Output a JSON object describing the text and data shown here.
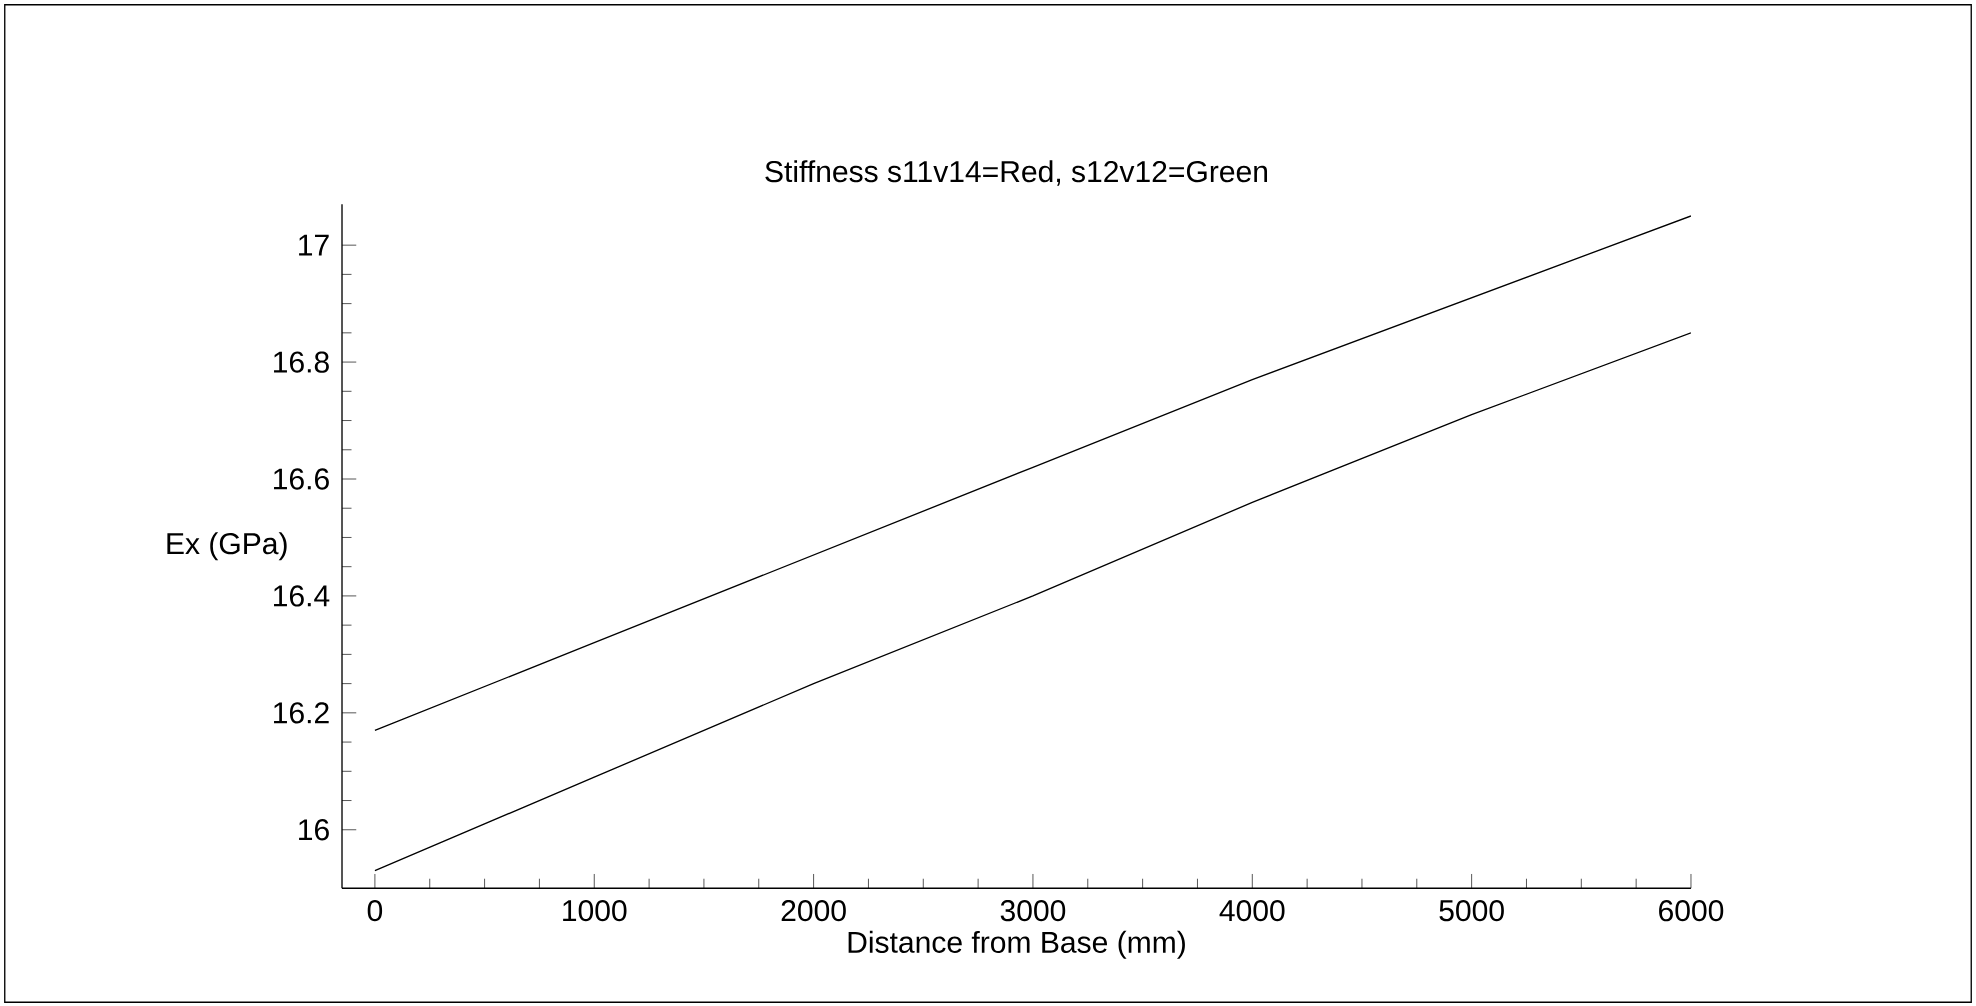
{
  "chart_data": {
    "type": "line",
    "title": "Stiffness  s11v14=Red,         s12v12=Green",
    "xlabel": "Distance from Base  (mm)",
    "ylabel": "Ex (GPa)",
    "x": [
      0,
      1000,
      2000,
      3000,
      4000,
      5000,
      6000
    ],
    "series": [
      {
        "color": "#000000",
        "values": [
          16.17,
          16.32,
          16.47,
          16.62,
          16.77,
          16.91,
          17.05
        ]
      },
      {
        "color": "#000000",
        "values": [
          15.93,
          16.09,
          16.25,
          16.4,
          16.56,
          16.71,
          16.85
        ]
      }
    ],
    "xlim": [
      -150,
      6000
    ],
    "ylim": [
      15.9,
      17.07
    ],
    "xticks": [
      0,
      1000,
      2000,
      3000,
      4000,
      5000,
      6000
    ],
    "yticks": [
      16,
      16.2,
      16.4,
      16.6,
      16.8,
      17
    ],
    "grid": false,
    "marker": "none",
    "line_style": "solid"
  }
}
